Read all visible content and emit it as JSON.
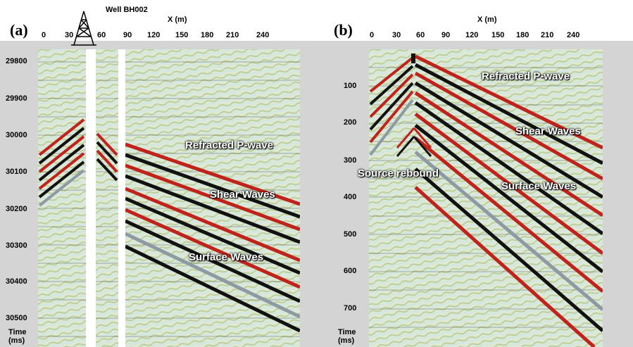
{
  "figure": {
    "panels": [
      {
        "id": "a",
        "label": "(a)",
        "x_axis_title": "X (m)",
        "x_ticks": [
          "0",
          "30",
          "60",
          "90",
          "120",
          "150",
          "180",
          "210",
          "240"
        ],
        "y_ticks": [
          "29800",
          "29900",
          "30000",
          "30100",
          "30200",
          "30300",
          "30400",
          "30500"
        ],
        "y_axis_title_line1": "Time",
        "y_axis_title_line2": "(ms)",
        "well_label": "Well BH002",
        "annotations": [
          "Refracted P-wave",
          "Shear Waves",
          "Surface Waves"
        ]
      },
      {
        "id": "b",
        "label": "(b)",
        "x_axis_title": "X (m)",
        "x_ticks": [
          "0",
          "30",
          "60",
          "90",
          "120",
          "150",
          "180",
          "210",
          "240"
        ],
        "y_ticks": [
          "100",
          "200",
          "300",
          "400",
          "500",
          "600",
          "700"
        ],
        "y_axis_title_line1": "Time",
        "y_axis_title_line2": "(ms)",
        "annotations": [
          "Refracted P-wave",
          "Shear Waves",
          "Source rebound",
          "Surface Waves"
        ]
      }
    ],
    "colors": {
      "trace_red": "#c0231c",
      "trace_black": "#111111",
      "trace_gray": "#8e9aa3",
      "bg_green": "#c8d9b0",
      "bg_cyan": "#d8eef2",
      "axis_gray": "#d4d4d4"
    }
  }
}
